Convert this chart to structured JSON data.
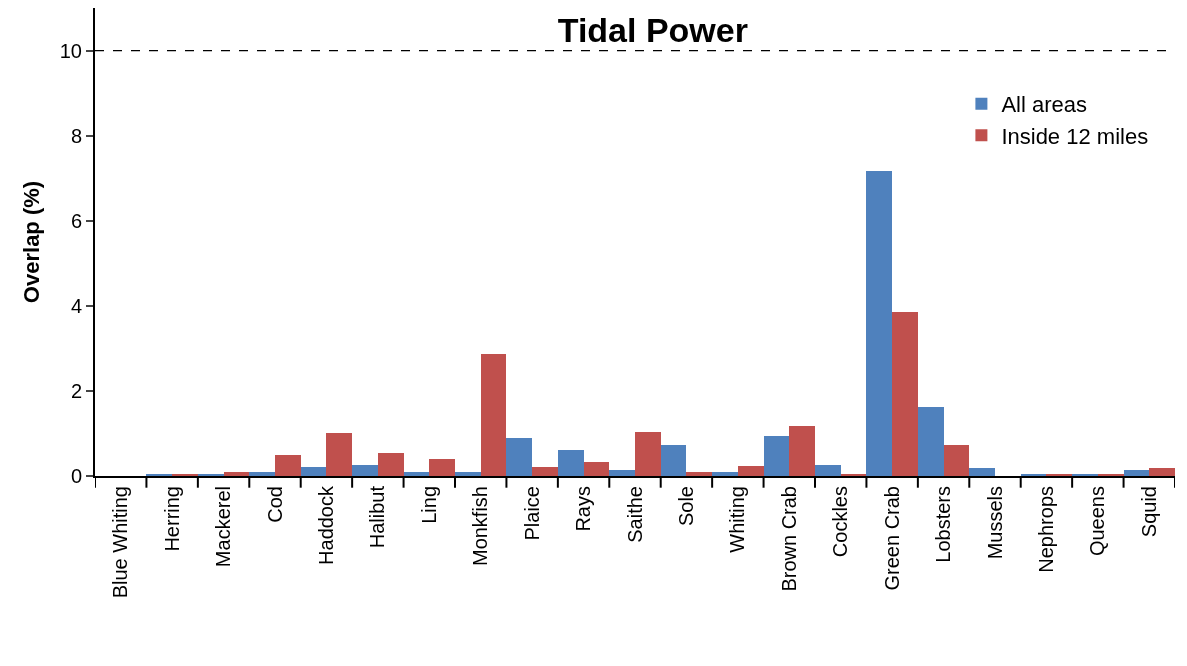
{
  "chart_data": {
    "type": "bar",
    "title": "Tidal Power",
    "ylabel": "Overlap (%)",
    "categories": [
      "Blue Whiting",
      "Herring",
      "Mackerel",
      "Cod",
      "Haddock",
      "Halibut",
      "Ling",
      "Monkfish",
      "Plaice",
      "Rays",
      "Saithe",
      "Sole",
      "Whiting",
      "Brown Crab",
      "Cockles",
      "Green Crab",
      "Lobsters",
      "Mussels",
      "Nephrops",
      "Queens",
      "Squid"
    ],
    "series": [
      {
        "name": "All areas",
        "color": "#4f81bd",
        "values": [
          0,
          0.05,
          0.05,
          0.1,
          0.2,
          0.27,
          0.1,
          0.1,
          0.9,
          0.62,
          0.14,
          0.72,
          0.1,
          0.95,
          0.27,
          7.17,
          1.62,
          0.18,
          0.04,
          0.04,
          0.14
        ]
      },
      {
        "name": "Inside 12 miles",
        "color": "#c0504d",
        "values": [
          0,
          0.05,
          0.1,
          0.5,
          1.0,
          0.55,
          0.4,
          2.87,
          0.2,
          0.33,
          1.03,
          0.1,
          0.23,
          1.17,
          0.05,
          3.85,
          0.72,
          0,
          0.04,
          0.04,
          0.18
        ]
      }
    ],
    "ylim": [
      0,
      11
    ],
    "yticks": [
      0,
      2,
      4,
      6,
      8,
      10
    ],
    "ref_lines": [
      {
        "axis": "y",
        "value": 10,
        "line_style": "dashed",
        "color": "#000000"
      }
    ],
    "grid": false,
    "legend": "top right"
  }
}
